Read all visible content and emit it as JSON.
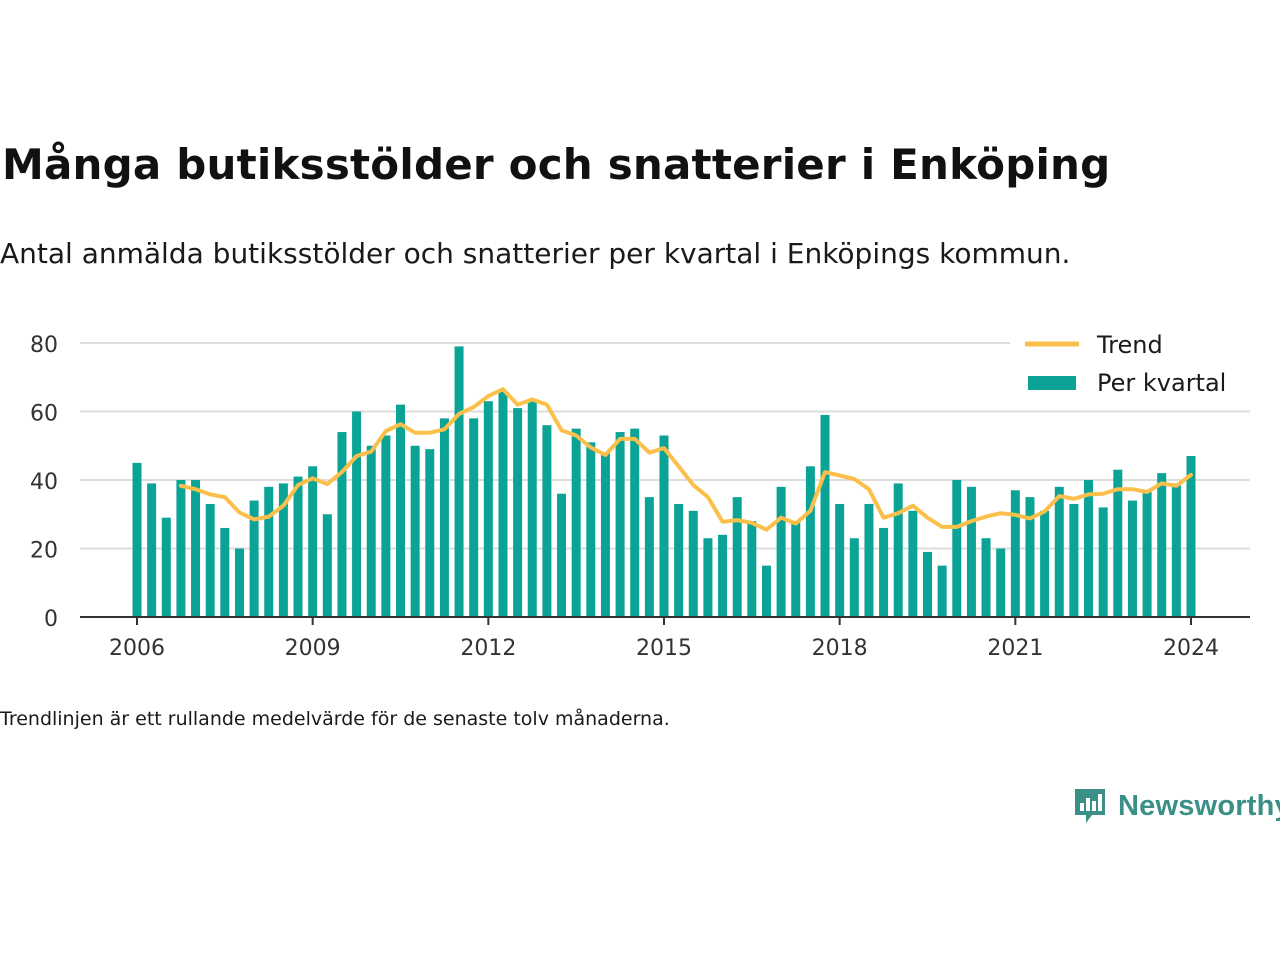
{
  "title": "Många butiksstölder och snatterier i Enköping",
  "subtitle": "Antal anmälda butiksstölder och snatterier per kvartal i Enköpings kommun.",
  "footnote": "Trendlinjen är ett rullande medelvärde för de senaste tolv månaderna.",
  "brand": {
    "name": "Newsworthy",
    "icon": "newsworthy-logo-icon",
    "color": "#3a8f86"
  },
  "colors": {
    "bar": "#0aa396",
    "trend": "#fbc04b",
    "grid": "#dddddd",
    "axis": "#333333"
  },
  "chart_data": {
    "type": "bar",
    "x_ticks": [
      "2006",
      "2009",
      "2012",
      "2015",
      "2018",
      "2021",
      "2024"
    ],
    "y_ticks": [
      0,
      20,
      40,
      60,
      80
    ],
    "ylim": [
      0,
      80
    ],
    "grid": true,
    "legend_position": "top-right",
    "series": [
      {
        "name": "Per kvartal",
        "kind": "bar",
        "x": [
          "2006-Q1",
          "2006-Q2",
          "2006-Q3",
          "2006-Q4",
          "2007-Q1",
          "2007-Q2",
          "2007-Q3",
          "2007-Q4",
          "2008-Q1",
          "2008-Q2",
          "2008-Q3",
          "2008-Q4",
          "2009-Q1",
          "2009-Q2",
          "2009-Q3",
          "2009-Q4",
          "2010-Q1",
          "2010-Q2",
          "2010-Q3",
          "2010-Q4",
          "2011-Q1",
          "2011-Q2",
          "2011-Q3",
          "2011-Q4",
          "2012-Q1",
          "2012-Q2",
          "2012-Q3",
          "2012-Q4",
          "2013-Q1",
          "2013-Q2",
          "2013-Q3",
          "2013-Q4",
          "2014-Q1",
          "2014-Q2",
          "2014-Q3",
          "2014-Q4",
          "2015-Q1",
          "2015-Q2",
          "2015-Q3",
          "2015-Q4",
          "2016-Q1",
          "2016-Q2",
          "2016-Q3",
          "2016-Q4",
          "2017-Q1",
          "2017-Q2",
          "2017-Q3",
          "2017-Q4",
          "2018-Q1",
          "2018-Q2",
          "2018-Q3",
          "2018-Q4",
          "2019-Q1",
          "2019-Q2",
          "2019-Q3",
          "2019-Q4",
          "2020-Q1",
          "2020-Q2",
          "2020-Q3",
          "2020-Q4",
          "2021-Q1",
          "2021-Q2",
          "2021-Q3",
          "2021-Q4",
          "2022-Q1",
          "2022-Q2",
          "2022-Q3",
          "2022-Q4",
          "2023-Q1",
          "2023-Q2",
          "2023-Q3",
          "2023-Q4",
          "2024-Q1"
        ],
        "values": [
          45,
          39,
          29,
          40,
          40,
          33,
          26,
          20,
          34,
          38,
          39,
          41,
          44,
          30,
          54,
          60,
          50,
          53,
          62,
          50,
          49,
          58,
          79,
          58,
          63,
          66,
          61,
          63,
          56,
          36,
          55,
          51,
          48,
          54,
          55,
          35,
          53,
          33,
          31,
          23,
          24,
          35,
          28,
          15,
          38,
          28,
          44,
          59,
          33,
          23,
          33,
          26,
          39,
          31,
          19,
          15,
          40,
          38,
          23,
          20,
          37,
          35,
          31,
          38,
          33,
          40,
          32,
          43,
          34,
          37,
          42,
          39,
          47
        ]
      },
      {
        "name": "Trend",
        "kind": "line",
        "x": [
          "2006-Q4",
          "2007-Q1",
          "2007-Q2",
          "2007-Q3",
          "2007-Q4",
          "2008-Q1",
          "2008-Q2",
          "2008-Q3",
          "2008-Q4",
          "2009-Q1",
          "2009-Q2",
          "2009-Q3",
          "2009-Q4",
          "2010-Q1",
          "2010-Q2",
          "2010-Q3",
          "2010-Q4",
          "2011-Q1",
          "2011-Q2",
          "2011-Q3",
          "2011-Q4",
          "2012-Q1",
          "2012-Q2",
          "2012-Q3",
          "2012-Q4",
          "2013-Q1",
          "2013-Q2",
          "2013-Q3",
          "2013-Q4",
          "2014-Q1",
          "2014-Q2",
          "2014-Q3",
          "2014-Q4",
          "2015-Q1",
          "2015-Q2",
          "2015-Q3",
          "2015-Q4",
          "2016-Q1",
          "2016-Q2",
          "2016-Q3",
          "2016-Q4",
          "2017-Q1",
          "2017-Q2",
          "2017-Q3",
          "2017-Q4",
          "2018-Q1",
          "2018-Q2",
          "2018-Q3",
          "2018-Q4",
          "2019-Q1",
          "2019-Q2",
          "2019-Q3",
          "2019-Q4",
          "2020-Q1",
          "2020-Q2",
          "2020-Q3",
          "2020-Q4",
          "2021-Q1",
          "2021-Q2",
          "2021-Q3",
          "2021-Q4",
          "2022-Q1",
          "2022-Q2",
          "2022-Q3",
          "2022-Q4",
          "2023-Q1",
          "2023-Q2",
          "2023-Q3",
          "2023-Q4",
          "2024-Q1"
        ],
        "values": [
          38.3,
          37.3,
          35.8,
          35.0,
          30.5,
          28.5,
          29.3,
          32.5,
          38.5,
          40.5,
          38.8,
          42.3,
          47.0,
          48.3,
          54.3,
          56.3,
          53.8,
          53.8,
          54.8,
          59.3,
          61.3,
          64.5,
          66.5,
          62.0,
          63.5,
          62.0,
          54.5,
          53.0,
          49.5,
          47.3,
          52.0,
          52.0,
          48.0,
          49.3,
          44.0,
          38.5,
          35.0,
          27.8,
          28.3,
          27.5,
          25.5,
          29.0,
          27.3,
          31.0,
          42.3,
          41.3,
          40.3,
          37.3,
          29.0,
          30.3,
          32.5,
          29.0,
          26.3,
          26.3,
          28.0,
          29.3,
          30.3,
          29.8,
          28.8,
          30.8,
          35.3,
          34.5,
          35.8,
          36.0,
          37.3,
          37.3,
          36.5,
          39.0,
          38.3,
          41.5
        ]
      }
    ]
  }
}
